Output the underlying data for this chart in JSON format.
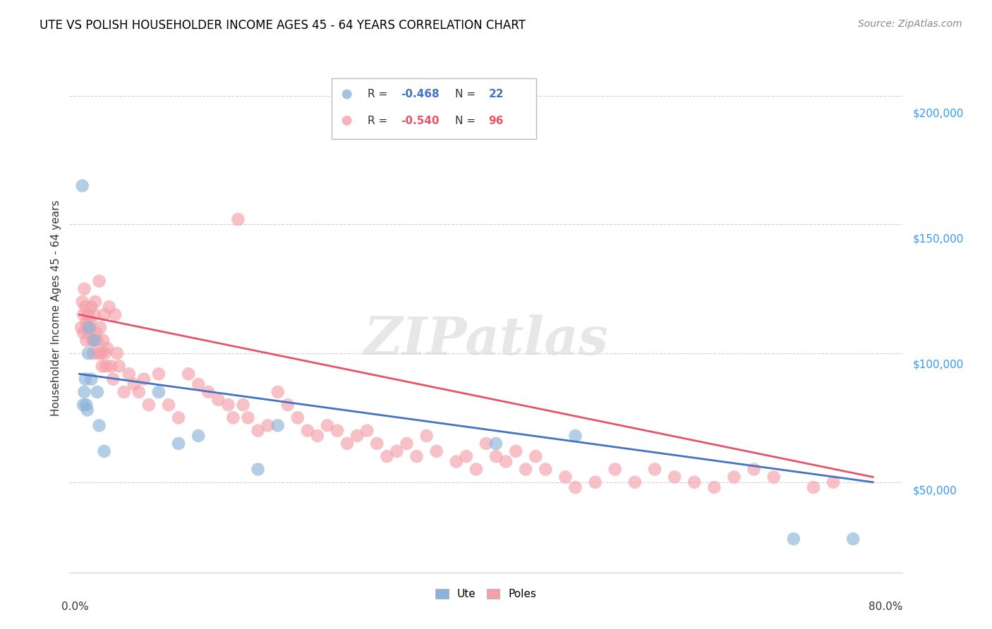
{
  "title": "UTE VS POLISH HOUSEHOLDER INCOME AGES 45 - 64 YEARS CORRELATION CHART",
  "source": "Source: ZipAtlas.com",
  "ylabel": "Householder Income Ages 45 - 64 years",
  "watermark": "ZIPatlas",
  "xlim": [
    -0.01,
    0.83
  ],
  "ylim": [
    15000,
    220000
  ],
  "ytick_vals": [
    50000,
    100000,
    150000,
    200000
  ],
  "ytick_labels": [
    "$50,000",
    "$100,000",
    "$150,000",
    "$200,000"
  ],
  "legend_ute_r": "-0.468",
  "legend_ute_n": "22",
  "legend_poles_r": "-0.540",
  "legend_poles_n": "96",
  "blue_color": "#8CB4D8",
  "pink_color": "#F4A0AA",
  "trend_blue": "#4472C4",
  "trend_pink": "#E7546A",
  "ute_x": [
    0.003,
    0.004,
    0.005,
    0.006,
    0.007,
    0.008,
    0.009,
    0.01,
    0.012,
    0.015,
    0.018,
    0.02,
    0.025,
    0.08,
    0.1,
    0.12,
    0.18,
    0.2,
    0.42,
    0.5,
    0.72,
    0.78
  ],
  "ute_y": [
    165000,
    80000,
    85000,
    90000,
    80000,
    78000,
    100000,
    110000,
    90000,
    105000,
    85000,
    72000,
    62000,
    85000,
    65000,
    68000,
    55000,
    72000,
    65000,
    68000,
    28000,
    28000
  ],
  "poles_x": [
    0.002,
    0.003,
    0.004,
    0.004,
    0.005,
    0.006,
    0.007,
    0.007,
    0.008,
    0.009,
    0.01,
    0.011,
    0.012,
    0.013,
    0.014,
    0.015,
    0.016,
    0.017,
    0.018,
    0.019,
    0.02,
    0.021,
    0.022,
    0.023,
    0.024,
    0.025,
    0.026,
    0.027,
    0.028,
    0.03,
    0.032,
    0.034,
    0.036,
    0.038,
    0.04,
    0.045,
    0.05,
    0.055,
    0.06,
    0.065,
    0.07,
    0.08,
    0.09,
    0.1,
    0.11,
    0.12,
    0.13,
    0.14,
    0.15,
    0.155,
    0.16,
    0.165,
    0.17,
    0.18,
    0.19,
    0.2,
    0.21,
    0.22,
    0.23,
    0.24,
    0.25,
    0.26,
    0.27,
    0.28,
    0.29,
    0.3,
    0.31,
    0.32,
    0.33,
    0.34,
    0.35,
    0.36,
    0.38,
    0.39,
    0.4,
    0.41,
    0.42,
    0.43,
    0.44,
    0.45,
    0.46,
    0.47,
    0.49,
    0.5,
    0.52,
    0.54,
    0.56,
    0.58,
    0.6,
    0.62,
    0.64,
    0.66,
    0.68,
    0.7,
    0.74,
    0.76
  ],
  "poles_y": [
    110000,
    120000,
    115000,
    108000,
    125000,
    118000,
    112000,
    105000,
    110000,
    115000,
    108000,
    112000,
    118000,
    105000,
    100000,
    115000,
    120000,
    108000,
    105000,
    100000,
    128000,
    110000,
    100000,
    95000,
    105000,
    115000,
    100000,
    95000,
    102000,
    118000,
    95000,
    90000,
    115000,
    100000,
    95000,
    85000,
    92000,
    88000,
    85000,
    90000,
    80000,
    92000,
    80000,
    75000,
    92000,
    88000,
    85000,
    82000,
    80000,
    75000,
    152000,
    80000,
    75000,
    70000,
    72000,
    85000,
    80000,
    75000,
    70000,
    68000,
    72000,
    70000,
    65000,
    68000,
    70000,
    65000,
    60000,
    62000,
    65000,
    60000,
    68000,
    62000,
    58000,
    60000,
    55000,
    65000,
    60000,
    58000,
    62000,
    55000,
    60000,
    55000,
    52000,
    48000,
    50000,
    55000,
    50000,
    55000,
    52000,
    50000,
    48000,
    52000,
    55000,
    52000,
    48000,
    50000
  ]
}
